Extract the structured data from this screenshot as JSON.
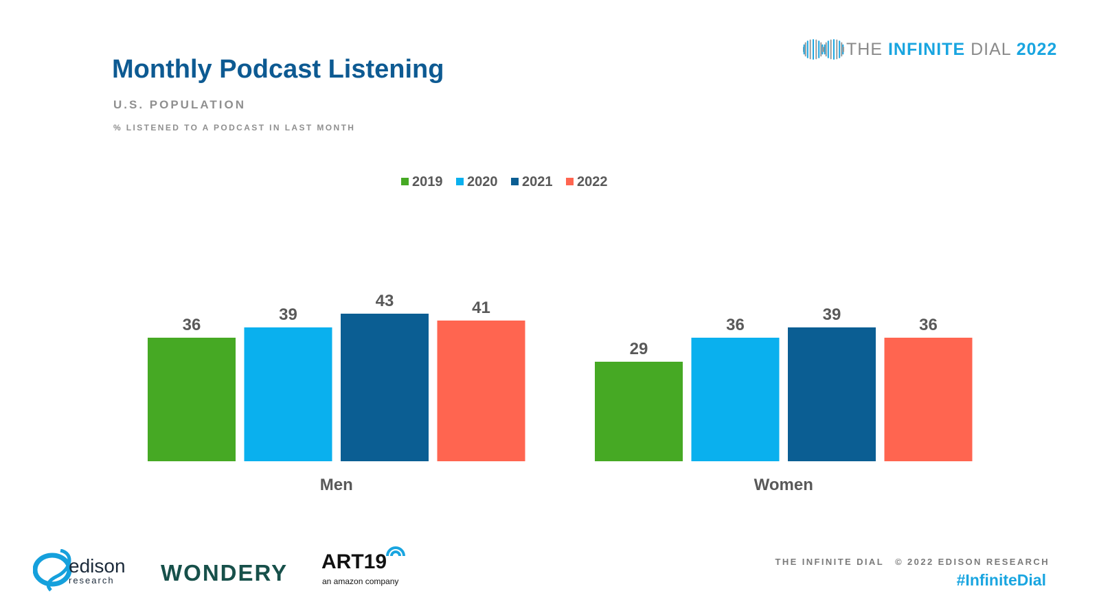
{
  "header": {
    "title": "Monthly Podcast Listening",
    "subtitle": "U.S. POPULATION",
    "note": "% LISTENED TO A PODCAST IN LAST MONTH"
  },
  "brand": {
    "word_the": "THE",
    "word_infinite": "INFINITE",
    "word_dial": "DIAL",
    "word_year": "2022",
    "icon": "infinity-dial-icon"
  },
  "footer": {
    "logo_edison_main": "edison",
    "logo_edison_sub": "research",
    "logo_wondery": "WONDERY",
    "logo_art19_main": "ART19",
    "logo_art19_tag": "an amazon company",
    "credit_left": "THE INFINITE DIAL",
    "credit_right": "© 2022 EDISON RESEARCH",
    "hashtag": "#InfiniteDial"
  },
  "colors": {
    "2019": "#46a924",
    "2020": "#0ab0ee",
    "2021": "#0b5e93",
    "2022": "#ff6550",
    "label": "#595959"
  },
  "chart_data": {
    "type": "bar",
    "categories": [
      "Men",
      "Women"
    ],
    "series": [
      {
        "name": "2019",
        "values": [
          36,
          29
        ]
      },
      {
        "name": "2020",
        "values": [
          39,
          36
        ]
      },
      {
        "name": "2021",
        "values": [
          43,
          39
        ]
      },
      {
        "name": "2022",
        "values": [
          41,
          36
        ]
      }
    ],
    "ylim": [
      0,
      100
    ],
    "grid": false,
    "legend": "top-center",
    "data_labels": true
  }
}
